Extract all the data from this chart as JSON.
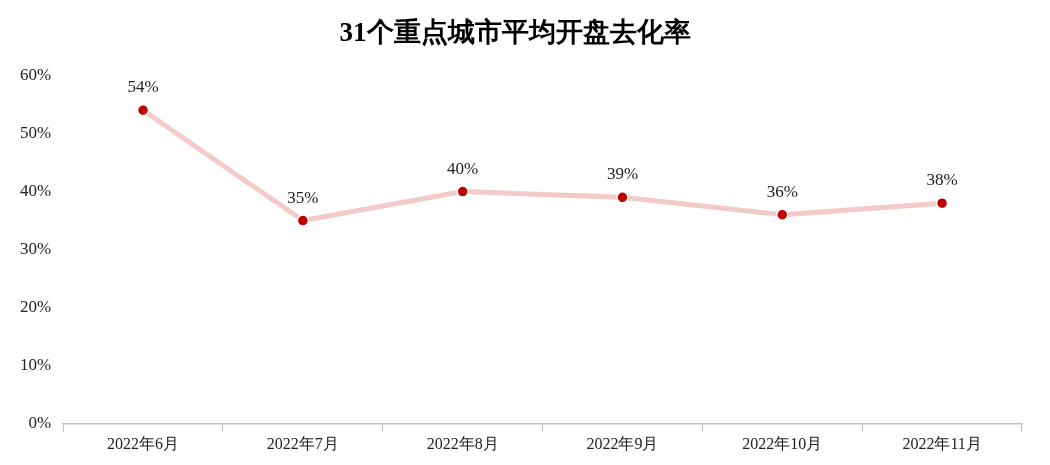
{
  "chart_data": {
    "type": "line",
    "title": "31个重点城市平均开盘去化率",
    "categories": [
      "2022年6月",
      "2022年7月",
      "2022年8月",
      "2022年9月",
      "2022年10月",
      "2022年11月"
    ],
    "series": [
      {
        "color": "#f2cbc8",
        "colors": [
          "#c00000",
          "#c00000",
          "#c00000",
          "#c00000",
          "#c00000",
          "#c00000"
        ],
        "values": [
          54,
          35,
          40,
          39,
          36,
          38
        ],
        "value_labels": [
          "54%",
          "35%",
          "40%",
          "39%",
          "36%",
          "38%"
        ]
      }
    ],
    "ylim": [
      0,
      60
    ],
    "yticks": [
      {
        "value": 0,
        "label": "0%"
      },
      {
        "value": 10,
        "label": "10%"
      },
      {
        "value": 20,
        "label": "20%"
      },
      {
        "value": 30,
        "label": "30%"
      },
      {
        "value": 40,
        "label": "40%"
      },
      {
        "value": 50,
        "label": "50%"
      },
      {
        "value": 60,
        "label": "60%"
      }
    ],
    "grid": false,
    "legend": false,
    "marker": "circle",
    "line_style": "solid"
  }
}
